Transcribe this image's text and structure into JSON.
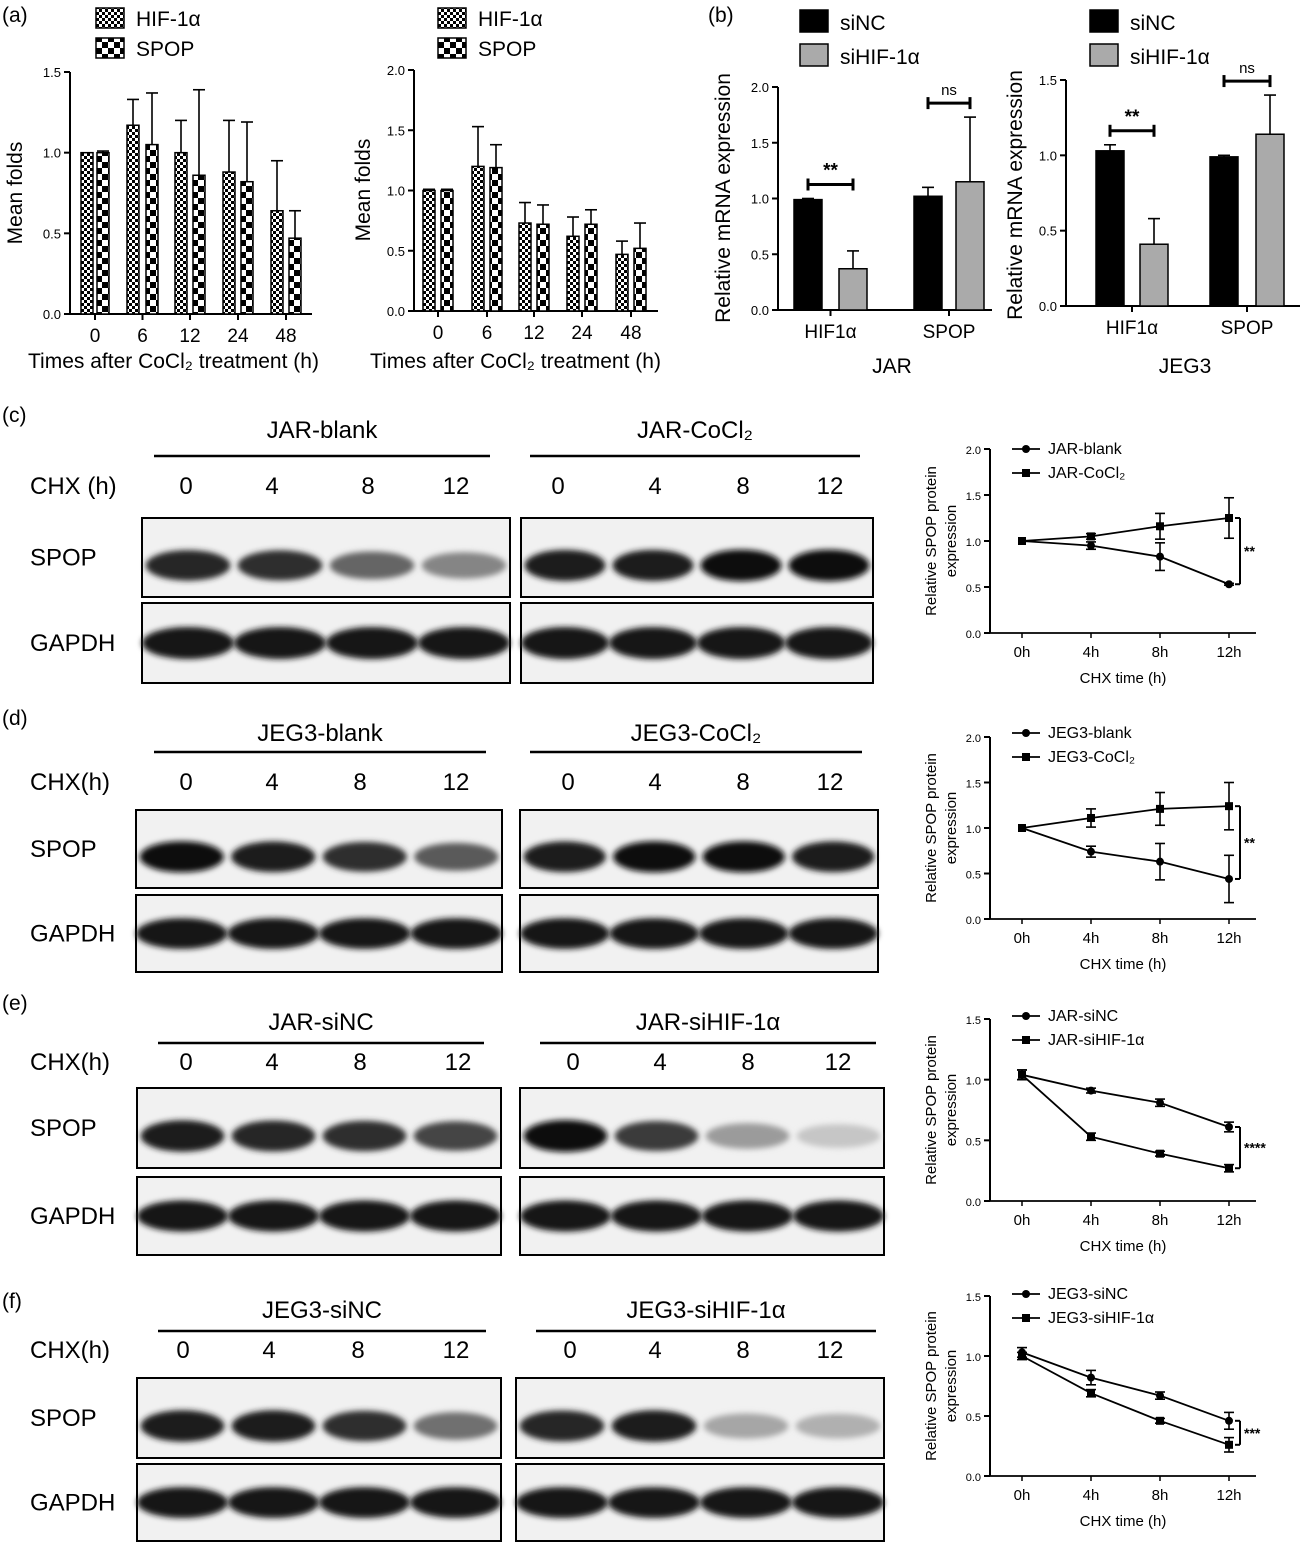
{
  "panels": {
    "a": "(a)",
    "b": "(b)",
    "c": "(c)",
    "d": "(d)",
    "e": "(e)",
    "f": "(f)"
  },
  "chart_data": [
    {
      "id": "a1",
      "type": "bar",
      "panel": "a",
      "categories": [
        "0",
        "6",
        "12",
        "24",
        "48"
      ],
      "series": [
        {
          "name": "HIF-1α",
          "values": [
            1.0,
            1.17,
            1.0,
            0.88,
            0.64
          ],
          "err": [
            0.0,
            0.16,
            0.2,
            0.32,
            0.31
          ]
        },
        {
          "name": "SPOP",
          "values": [
            1.0,
            1.05,
            0.86,
            0.82,
            0.47
          ],
          "err": [
            0.01,
            0.32,
            0.53,
            0.37,
            0.17
          ]
        }
      ],
      "xlabel": "Times after CoCl₂ treatment (h)",
      "ylabel": "Mean folds",
      "ylim": [
        0,
        1.5
      ],
      "yticks": [
        "0.0",
        "0.5",
        "1.0",
        "1.5"
      ],
      "grid": false,
      "legend": "top-left"
    },
    {
      "id": "a2",
      "type": "bar",
      "panel": "a",
      "categories": [
        "0",
        "6",
        "12",
        "24",
        "48"
      ],
      "series": [
        {
          "name": "HIF-1α",
          "values": [
            1.0,
            1.2,
            0.73,
            0.62,
            0.47
          ],
          "err": [
            0.01,
            0.33,
            0.17,
            0.16,
            0.11
          ]
        },
        {
          "name": "SPOP",
          "values": [
            1.0,
            1.19,
            0.72,
            0.72,
            0.52
          ],
          "err": [
            0.01,
            0.19,
            0.16,
            0.12,
            0.21
          ]
        }
      ],
      "xlabel": "Times after CoCl₂ treatment (h)",
      "ylabel": "Mean folds",
      "ylim": [
        0,
        2.0
      ],
      "yticks": [
        "0.0",
        "0.5",
        "1.0",
        "1.5",
        "2.0"
      ],
      "grid": false,
      "legend": "top-left"
    },
    {
      "id": "b1",
      "type": "bar",
      "panel": "b",
      "categories": [
        "HIF1α",
        "SPOP"
      ],
      "series": [
        {
          "name": "siNC",
          "values": [
            0.99,
            1.02
          ],
          "err": [
            0.01,
            0.08
          ]
        },
        {
          "name": "siHIF-1α",
          "values": [
            0.37,
            1.15
          ],
          "err": [
            0.16,
            0.58
          ]
        }
      ],
      "xlabel": "JAR",
      "ylabel": "Relative mRNA expression",
      "ylim": [
        0,
        2.0
      ],
      "yticks": [
        "0.0",
        "0.5",
        "1.0",
        "1.5",
        "2.0"
      ],
      "annotations": [
        "**",
        "ns"
      ],
      "grid": false,
      "legend": "top-left"
    },
    {
      "id": "b2",
      "type": "bar",
      "panel": "b",
      "categories": [
        "HIF1α",
        "SPOP"
      ],
      "series": [
        {
          "name": "siNC",
          "values": [
            1.03,
            0.99
          ],
          "err": [
            0.04,
            0.01
          ]
        },
        {
          "name": "siHIF-1α",
          "values": [
            0.41,
            1.14
          ],
          "err": [
            0.17,
            0.26
          ]
        }
      ],
      "xlabel": "JEG3",
      "ylabel": "Relative mRNA expression",
      "ylim": [
        0,
        1.5
      ],
      "yticks": [
        "0.0",
        "0.5",
        "1.0",
        "1.5"
      ],
      "annotations": [
        "**",
        "ns"
      ],
      "grid": false,
      "legend": "top-left"
    },
    {
      "id": "c",
      "type": "line",
      "panel": "c",
      "x": [
        "0h",
        "4h",
        "8h",
        "12h"
      ],
      "series": [
        {
          "name": "JAR-blank",
          "marker": "circle",
          "values": [
            1.0,
            0.95,
            0.83,
            0.53
          ],
          "err": [
            0.0,
            0.04,
            0.15,
            0.01
          ]
        },
        {
          "name": "JAR-CoCl₂",
          "marker": "square",
          "values": [
            1.0,
            1.05,
            1.16,
            1.25
          ],
          "err": [
            0.0,
            0.03,
            0.14,
            0.22
          ]
        }
      ],
      "xlabel": "CHX time (h)",
      "ylabel": "Relative SPOP protein expression",
      "ylim": [
        0,
        2.0
      ],
      "yticks": [
        "0.0",
        "0.5",
        "1.0",
        "1.5",
        "2.0"
      ],
      "annotation": "**",
      "grid": false,
      "legend": "top-left"
    },
    {
      "id": "d",
      "type": "line",
      "panel": "d",
      "x": [
        "0h",
        "4h",
        "8h",
        "12h"
      ],
      "series": [
        {
          "name": "JEG3-blank",
          "marker": "circle",
          "values": [
            1.0,
            0.74,
            0.63,
            0.44
          ],
          "err": [
            0.0,
            0.06,
            0.2,
            0.26
          ]
        },
        {
          "name": "JEG3-CoCl₂",
          "marker": "square",
          "values": [
            1.0,
            1.11,
            1.21,
            1.24
          ],
          "err": [
            0.0,
            0.1,
            0.18,
            0.26
          ]
        }
      ],
      "xlabel": "CHX time (h)",
      "ylabel": "Relative SPOP protein expression",
      "ylim": [
        0,
        2.0
      ],
      "yticks": [
        "0.0",
        "0.5",
        "1.0",
        "1.5",
        "2.0"
      ],
      "annotation": "**",
      "grid": false,
      "legend": "top-left"
    },
    {
      "id": "e",
      "type": "line",
      "panel": "e",
      "x": [
        "0h",
        "4h",
        "8h",
        "12h"
      ],
      "series": [
        {
          "name": "JAR-siNC",
          "marker": "circle",
          "values": [
            1.04,
            0.91,
            0.81,
            0.61
          ],
          "err": [
            0.04,
            0.02,
            0.03,
            0.04
          ]
        },
        {
          "name": "JAR-siHIF-1α",
          "marker": "square",
          "values": [
            1.04,
            0.53,
            0.39,
            0.27
          ],
          "err": [
            0.04,
            0.03,
            0.02,
            0.03
          ]
        }
      ],
      "xlabel": "CHX time (h)",
      "ylabel": "Relative SPOP protein expression",
      "ylim": [
        0,
        1.5
      ],
      "yticks": [
        "0.0",
        "0.5",
        "1.0",
        "1.5"
      ],
      "annotation": "****",
      "grid": false,
      "legend": "top-left"
    },
    {
      "id": "f",
      "type": "line",
      "panel": "f",
      "x": [
        "0h",
        "4h",
        "8h",
        "12h"
      ],
      "series": [
        {
          "name": "JEG3-siNC",
          "marker": "circle",
          "values": [
            1.03,
            0.82,
            0.67,
            0.46
          ],
          "err": [
            0.04,
            0.06,
            0.03,
            0.07
          ]
        },
        {
          "name": "JEG3-siHIF-1α",
          "marker": "square",
          "values": [
            1.0,
            0.69,
            0.46,
            0.26
          ],
          "err": [
            0.03,
            0.03,
            0.02,
            0.06
          ]
        }
      ],
      "xlabel": "CHX time (h)",
      "ylabel": "Relative SPOP protein expression",
      "ylim": [
        0,
        1.5
      ],
      "yticks": [
        "0.0",
        "0.5",
        "1.0",
        "1.5"
      ],
      "annotation": "***",
      "grid": false,
      "legend": "top-left"
    }
  ],
  "blots": [
    {
      "panel": "c",
      "chx_label": "CHX (h)",
      "time_points": [
        "0",
        "4",
        "8",
        "12"
      ],
      "rows": [
        "SPOP",
        "GAPDH"
      ],
      "groups": [
        {
          "title": "JAR-blank",
          "spop_intensity": [
            0.9,
            0.85,
            0.6,
            0.45
          ]
        },
        {
          "title": "JAR-CoCl₂",
          "spop_intensity": [
            0.95,
            0.95,
            1.0,
            1.0
          ]
        }
      ]
    },
    {
      "panel": "d",
      "chx_label": "CHX(h)",
      "time_points": [
        "0",
        "4",
        "8",
        "12"
      ],
      "rows": [
        "SPOP",
        "GAPDH"
      ],
      "groups": [
        {
          "title": "JEG3-blank",
          "spop_intensity": [
            1.0,
            0.95,
            0.85,
            0.65
          ]
        },
        {
          "title": "JEG3-CoCl₂",
          "spop_intensity": [
            0.95,
            1.0,
            1.0,
            0.95
          ]
        }
      ]
    },
    {
      "panel": "e",
      "chx_label": "CHX(h)",
      "time_points": [
        "0",
        "4",
        "8",
        "12"
      ],
      "rows": [
        "SPOP",
        "GAPDH"
      ],
      "groups": [
        {
          "title": "JAR-siNC",
          "spop_intensity": [
            0.95,
            0.9,
            0.85,
            0.75
          ]
        },
        {
          "title": "JAR-siHIF-1α",
          "spop_intensity": [
            1.0,
            0.8,
            0.35,
            0.15
          ]
        }
      ]
    },
    {
      "panel": "f",
      "chx_label": "CHX(h)",
      "time_points": [
        "0",
        "4",
        "8",
        "12"
      ],
      "rows": [
        "SPOP",
        "GAPDH"
      ],
      "groups": [
        {
          "title": "JEG3-siNC",
          "spop_intensity": [
            0.95,
            0.95,
            0.85,
            0.55
          ]
        },
        {
          "title": "JEG3-siHIF-1α",
          "spop_intensity": [
            0.9,
            0.95,
            0.3,
            0.25
          ]
        }
      ]
    }
  ]
}
